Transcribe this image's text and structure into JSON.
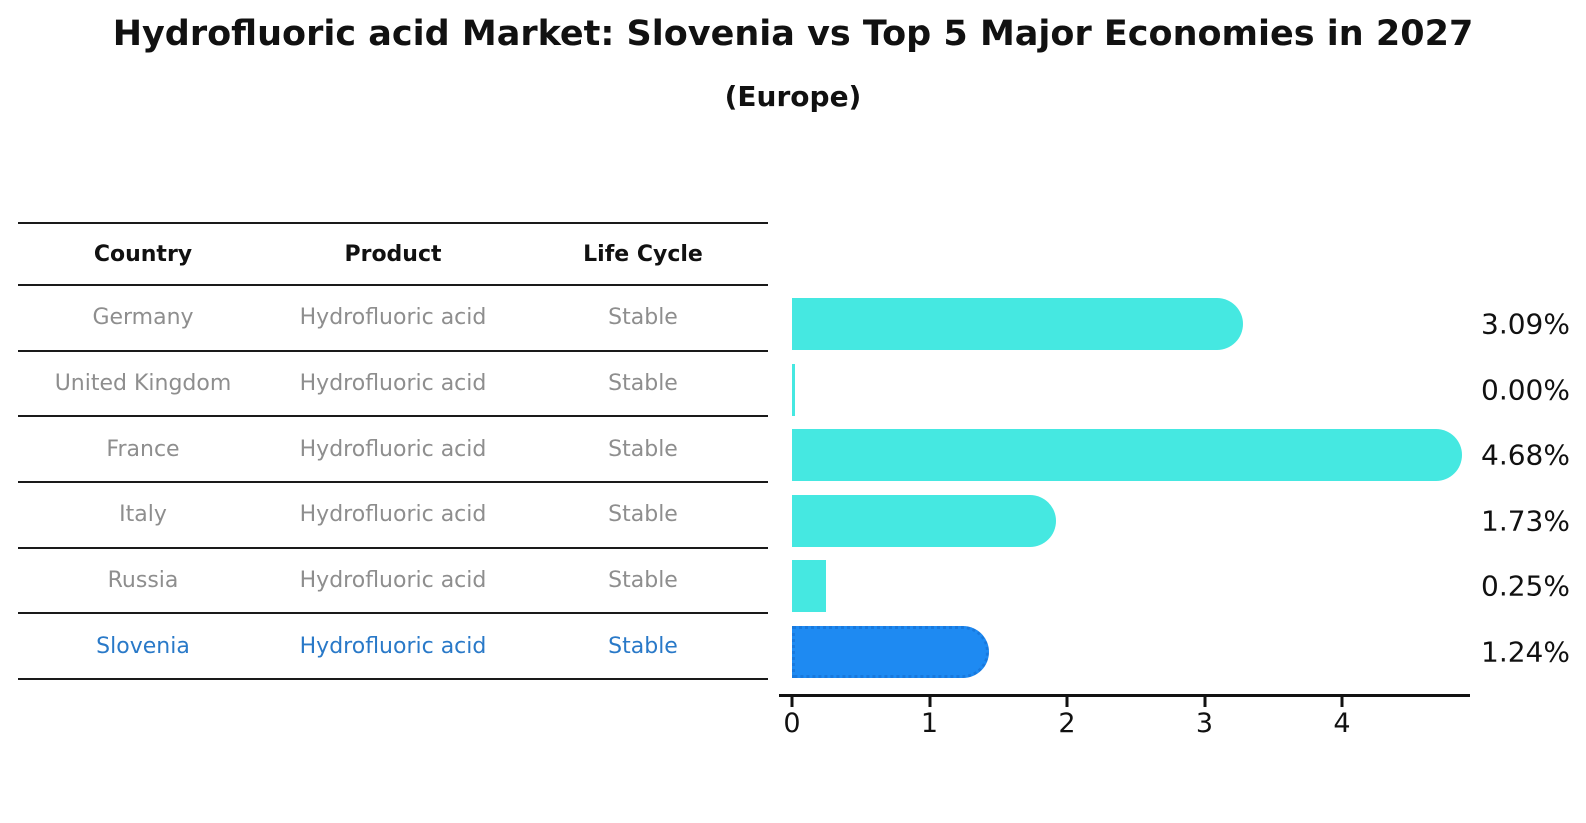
{
  "title": "Hydrofluoric acid Market: Slovenia vs Top 5 Major Economies in 2027",
  "subtitle": "(Europe)",
  "table": {
    "headers": [
      "Country",
      "Product",
      "Life Cycle"
    ],
    "rows": [
      {
        "country": "Germany",
        "product": "Hydrofluoric acid",
        "life_cycle": "Stable",
        "highlight": false
      },
      {
        "country": "United Kingdom",
        "product": "Hydrofluoric acid",
        "life_cycle": "Stable",
        "highlight": false
      },
      {
        "country": "France",
        "product": "Hydrofluoric acid",
        "life_cycle": "Stable",
        "highlight": false
      },
      {
        "country": "Italy",
        "product": "Hydrofluoric acid",
        "life_cycle": "Stable",
        "highlight": false
      },
      {
        "country": "Russia",
        "product": "Hydrofluoric acid",
        "life_cycle": "Stable",
        "highlight": true
      }
    ],
    "highlight_row": {
      "country": "Slovenia",
      "product": "Hydrofluoric acid",
      "life_cycle": "Stable"
    }
  },
  "chart_data": {
    "type": "bar",
    "orientation": "horizontal",
    "title": "Hydrofluoric acid Market: Slovenia vs Top 5 Major Economies in 2027 (Europe)",
    "categories": [
      "Germany",
      "United Kingdom",
      "France",
      "Italy",
      "Russia",
      "Slovenia"
    ],
    "values": [
      3.09,
      0.0,
      4.68,
      1.73,
      0.25,
      1.24
    ],
    "value_labels": [
      "3.09%",
      "0.00%",
      "4.68%",
      "1.73%",
      "0.25%",
      "1.24%"
    ],
    "x_ticks": [
      "0",
      "1",
      "2",
      "3",
      "4"
    ],
    "xlim": [
      0,
      4.93
    ],
    "grid": false,
    "legend": false,
    "highlight_index": 5,
    "colors": {
      "bar": "#45e8e1",
      "highlight_bar": "#1e8af2",
      "highlight_bar_border": "#1879de",
      "value_text": "#111111",
      "table_text": "#8e8e8e",
      "highlight_text": "#2979c8"
    }
  }
}
